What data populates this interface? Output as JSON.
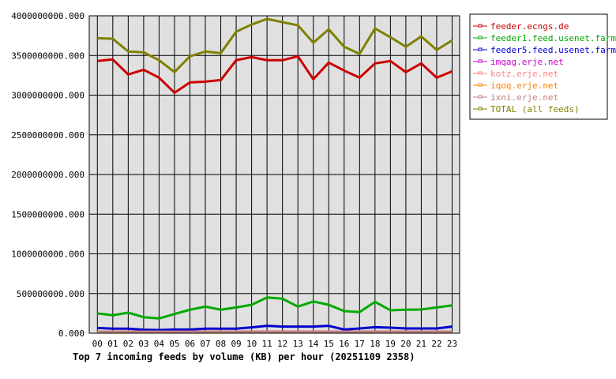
{
  "chart_data": {
    "type": "line",
    "title": "Top 7 incoming feeds by volume (KB) per hour (20251109 2358)",
    "xlabel": "",
    "ylabel": "",
    "ylim": [
      0,
      4000000000
    ],
    "grid": true,
    "legend_position": "right",
    "y_ticks": [
      "0.000",
      "500000000.000",
      "1000000000.000",
      "1500000000.000",
      "2000000000.000",
      "2500000000.000",
      "3000000000.000",
      "3500000000.000",
      "4000000000.000"
    ],
    "y_tick_values": [
      0,
      500000000,
      1000000000,
      1500000000,
      2000000000,
      2500000000,
      3000000000,
      3500000000,
      4000000000
    ],
    "categories": [
      "00",
      "01",
      "02",
      "03",
      "04",
      "05",
      "06",
      "07",
      "08",
      "09",
      "10",
      "11",
      "12",
      "13",
      "14",
      "15",
      "16",
      "17",
      "18",
      "19",
      "20",
      "21",
      "22",
      "23"
    ],
    "series": [
      {
        "name": "feeder.ecngs.de",
        "color": "#cc0000",
        "values": [
          3430000000,
          3450000000,
          3260000000,
          3320000000,
          3220000000,
          3030000000,
          3160000000,
          3170000000,
          3190000000,
          3440000000,
          3480000000,
          3440000000,
          3440000000,
          3490000000,
          3200000000,
          3410000000,
          3310000000,
          3220000000,
          3400000000,
          3430000000,
          3290000000,
          3400000000,
          3220000000,
          3300000000
        ]
      },
      {
        "name": "feeder1.feed.usenet.farm",
        "color": "#00aa00",
        "values": [
          249000000,
          226000000,
          259000000,
          202000000,
          186000000,
          242000000,
          296000000,
          335000000,
          296000000,
          325000000,
          358000000,
          450000000,
          435000000,
          335000000,
          400000000,
          358000000,
          279000000,
          266000000,
          395000000,
          289000000,
          296000000,
          299000000,
          325000000,
          351000000
        ]
      },
      {
        "name": "feeder5.feed.usenet.farm",
        "color": "#0000cc",
        "values": [
          66000000,
          57000000,
          57000000,
          43000000,
          40000000,
          46000000,
          46000000,
          57000000,
          57000000,
          57000000,
          73000000,
          93000000,
          83000000,
          83000000,
          83000000,
          93000000,
          46000000,
          60000000,
          76000000,
          70000000,
          60000000,
          60000000,
          60000000,
          83000000
        ]
      },
      {
        "name": "imqag.erje.net",
        "color": "#cc00cc",
        "values": [
          0,
          0,
          0,
          0,
          0,
          0,
          0,
          0,
          0,
          0,
          0,
          0,
          0,
          0,
          0,
          0,
          0,
          0,
          0,
          0,
          0,
          0,
          0,
          0
        ]
      },
      {
        "name": "kotz.erje.net",
        "color": "#ff8080",
        "values": [
          0,
          0,
          0,
          0,
          0,
          0,
          0,
          0,
          0,
          0,
          0,
          0,
          0,
          0,
          0,
          0,
          0,
          0,
          0,
          0,
          0,
          0,
          0,
          0
        ]
      },
      {
        "name": "iqoq.erje.net",
        "color": "#ff8000",
        "values": [
          0,
          0,
          0,
          0,
          0,
          0,
          0,
          0,
          0,
          0,
          0,
          0,
          0,
          0,
          0,
          0,
          0,
          0,
          0,
          0,
          0,
          0,
          0,
          0
        ]
      },
      {
        "name": "ixni.erje.net",
        "color": "#c08080",
        "values": [
          0,
          0,
          0,
          0,
          0,
          0,
          0,
          0,
          0,
          0,
          0,
          0,
          0,
          0,
          0,
          0,
          0,
          0,
          0,
          0,
          0,
          0,
          0,
          0
        ]
      },
      {
        "name": "TOTAL (all feeds)",
        "color": "#808000",
        "values": [
          3718000000,
          3710000000,
          3550000000,
          3540000000,
          3440000000,
          3290000000,
          3490000000,
          3550000000,
          3530000000,
          3800000000,
          3890000000,
          3960000000,
          3920000000,
          3880000000,
          3660000000,
          3830000000,
          3610000000,
          3520000000,
          3840000000,
          3730000000,
          3610000000,
          3740000000,
          3570000000,
          3690000000
        ]
      }
    ]
  }
}
